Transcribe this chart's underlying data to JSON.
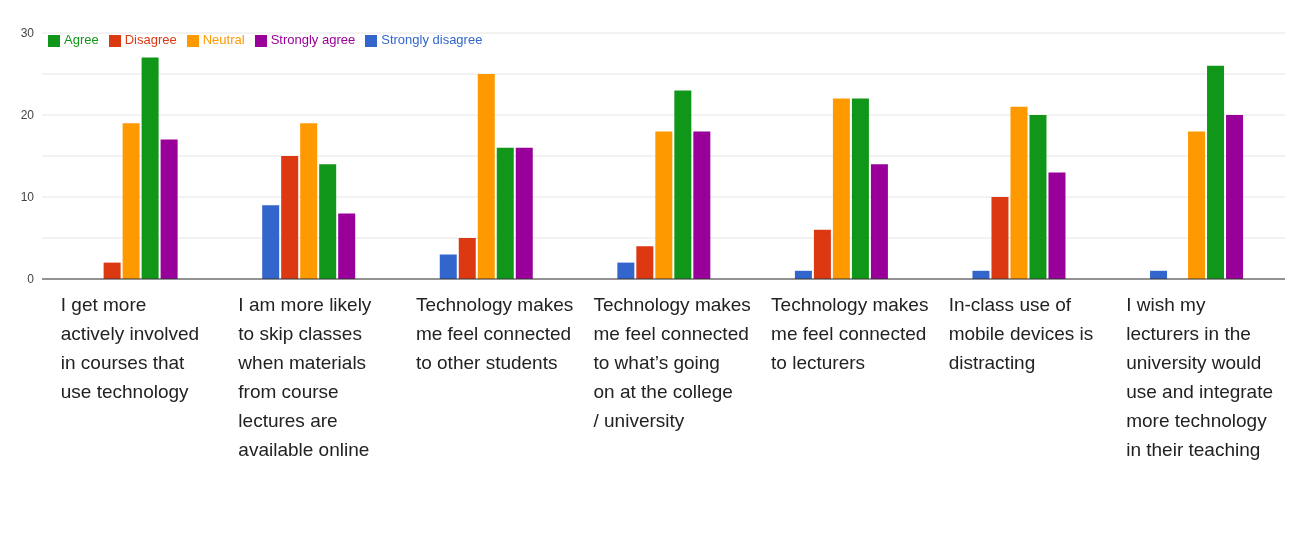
{
  "chart_data": {
    "type": "bar",
    "categories": [
      "I get more actively involved in courses that use technology",
      "I am more likely to skip classes when materials from course lectures are available online",
      "Technology makes me feel connected to other students",
      "Technology makes me feel connected to what’s going on at the college / university",
      "Technology makes me feel connected to lecturers",
      "In-class use of mobile devices is distracting",
      "I wish my lecturers in the university would use and integrate more technology in their teaching"
    ],
    "series": [
      {
        "name": "Strongly disagree",
        "color": "#3366cc",
        "values": [
          0,
          9,
          3,
          2,
          1,
          1,
          1
        ]
      },
      {
        "name": "Disagree",
        "color": "#dc3912",
        "values": [
          2,
          15,
          5,
          4,
          6,
          10,
          0
        ]
      },
      {
        "name": "Neutral",
        "color": "#ff9900",
        "values": [
          19,
          19,
          25,
          18,
          22,
          21,
          18
        ]
      },
      {
        "name": "Agree",
        "color": "#109618",
        "values": [
          27,
          14,
          16,
          23,
          22,
          20,
          26
        ]
      },
      {
        "name": "Strongly agree",
        "color": "#990099",
        "values": [
          17,
          8,
          16,
          18,
          14,
          13,
          20
        ]
      }
    ],
    "ylim": [
      0,
      30
    ],
    "yticks": [
      0,
      {
        "value": 5,
        "label": null
      },
      10,
      {
        "value": 15,
        "label": null
      },
      20,
      {
        "value": 25,
        "label": null
      },
      30
    ],
    "grid": "y",
    "legend": "top left"
  }
}
